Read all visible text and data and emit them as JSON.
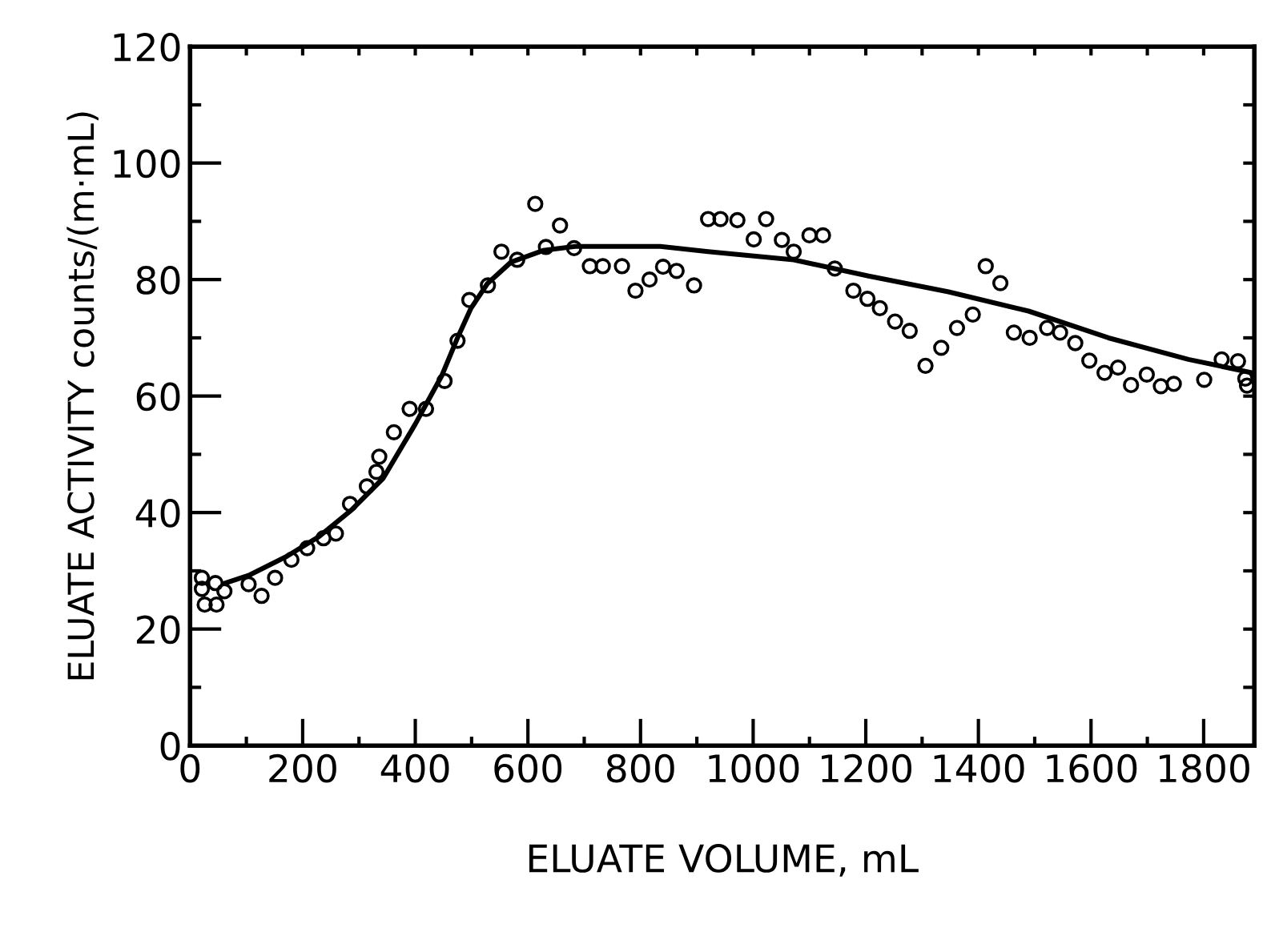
{
  "chart_data": {
    "type": "scatter",
    "xlabel": "ELUATE VOLUME, mL",
    "ylabel": "ELUATE ACTIVITY counts/(m·mL)",
    "xlim": [
      0,
      1890
    ],
    "ylim": [
      0,
      120
    ],
    "xticks": [
      0,
      {
        "value": 100,
        "label": null
      },
      200,
      {
        "value": 300,
        "label": null
      },
      400,
      {
        "value": 500,
        "label": null
      },
      600,
      {
        "value": 700,
        "label": null
      },
      800,
      {
        "value": 900,
        "label": null
      },
      1000,
      {
        "value": 1100,
        "label": null
      },
      1200,
      {
        "value": 1300,
        "label": null
      },
      1400,
      {
        "value": 1500,
        "label": null
      },
      1600,
      {
        "value": 1700,
        "label": null
      },
      1800
    ],
    "yticks": [
      0,
      {
        "value": 10,
        "label": null
      },
      20,
      {
        "value": 30,
        "label": null
      },
      40,
      {
        "value": 50,
        "label": null
      },
      60,
      {
        "value": 70,
        "label": null
      },
      80,
      {
        "value": 90,
        "label": null
      },
      100,
      {
        "value": 110,
        "label": null
      },
      120
    ],
    "grid": false,
    "legend": false,
    "series": [
      {
        "color": "#000000",
        "marker": "circle",
        "x": [
          21,
          21,
          26,
          45,
          47,
          61,
          104,
          127,
          151,
          180,
          208,
          237,
          259,
          284,
          314,
          331,
          336,
          362,
          390,
          419,
          452,
          475,
          496,
          529,
          553,
          581,
          613,
          632,
          657,
          682,
          710,
          733,
          767,
          791,
          816,
          840,
          864,
          895,
          920,
          942,
          972,
          1001,
          1023,
          1051,
          1072,
          1100,
          1124,
          1145,
          1178,
          1203,
          1225,
          1252,
          1278,
          1306,
          1334,
          1362,
          1390,
          1413,
          1439,
          1463,
          1491,
          1522,
          1545,
          1572,
          1597,
          1624,
          1648,
          1671,
          1699,
          1724,
          1747,
          1801,
          1832,
          1861,
          1877,
          1874
        ],
        "values": [
          28.8,
          26.9,
          24.2,
          27.9,
          24.2,
          26.5,
          27.7,
          25.7,
          28.8,
          31.9,
          33.9,
          35.6,
          36.4,
          41.5,
          44.5,
          47.0,
          49.6,
          53.8,
          57.8,
          57.8,
          62.6,
          69.5,
          76.5,
          79.0,
          84.8,
          83.4,
          93.0,
          85.6,
          89.3,
          85.4,
          82.3,
          82.3,
          82.3,
          78.1,
          80.0,
          82.2,
          81.5,
          79.0,
          90.4,
          90.4,
          90.2,
          86.9,
          90.4,
          86.8,
          84.8,
          87.6,
          87.6,
          81.9,
          78.1,
          76.7,
          75.1,
          72.8,
          71.2,
          65.2,
          68.3,
          71.7,
          74.0,
          82.3,
          79.4,
          70.9,
          70.0,
          71.7,
          70.9,
          69.1,
          66.1,
          64.0,
          64.9,
          61.9,
          63.7,
          61.7,
          62.1,
          62.8,
          66.3,
          66.0,
          61.8,
          63.0
        ]
      },
      {
        "type": "line",
        "color": "#000000",
        "marker": "none",
        "line_style": "solid",
        "x": [
          63,
          106,
          172,
          229,
          286,
          343,
          400,
          447,
          475,
          499,
          528,
          570,
          627,
          684,
          741,
          835,
          920,
          1072,
          1205,
          1347,
          1489,
          1631,
          1773,
          1886
        ],
        "values": [
          27.9,
          29.3,
          32.5,
          35.9,
          40.4,
          45.9,
          55.2,
          63.5,
          70.0,
          75.1,
          79.3,
          83.0,
          85.0,
          85.7,
          85.7,
          85.7,
          84.8,
          83.4,
          80.6,
          77.9,
          74.6,
          70.0,
          66.3,
          64.0
        ]
      }
    ]
  }
}
